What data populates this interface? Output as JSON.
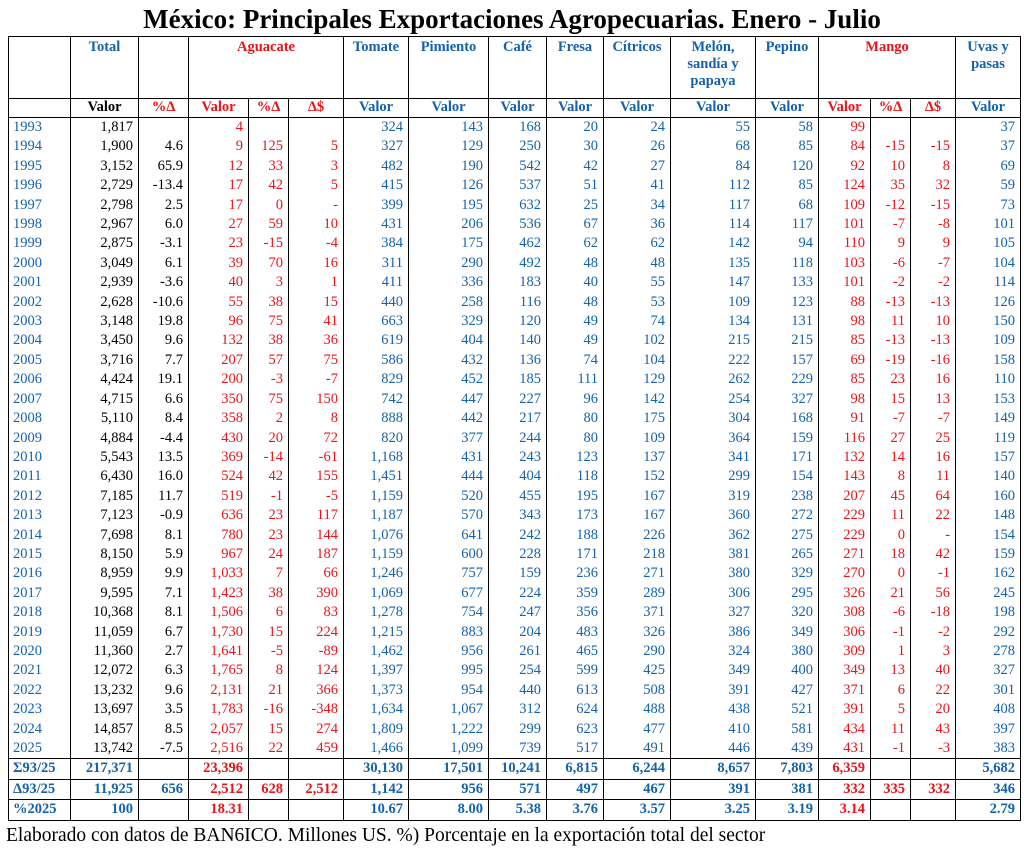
{
  "title": "México: Principales Exportaciones Agropecuarias. Enero - Julio",
  "header": {
    "groups": [
      null,
      "Total",
      null,
      "Aguacate",
      "Tomate",
      "Pimiento",
      "Café",
      "Fresa",
      "Cítricos",
      "Melón, sandía y papaya",
      "Pepino",
      "Mango",
      "Uvas y pasas"
    ],
    "subheaders": [
      null,
      "Valor",
      "%Δ",
      "Valor",
      "%Δ",
      "Δ$",
      "Valor",
      "Valor",
      "Valor",
      "Valor",
      "Valor",
      "Valor",
      "Valor",
      "Valor",
      "%Δ",
      "Δ$",
      "Valor"
    ]
  },
  "table": {
    "rows": [
      [
        "1993",
        "1,817",
        null,
        "4",
        null,
        null,
        "324",
        "143",
        "168",
        "20",
        "24",
        "55",
        "58",
        "99",
        null,
        null,
        "37"
      ],
      [
        "1994",
        "1,900",
        "4.6",
        "9",
        "125",
        "5",
        "327",
        "129",
        "250",
        "30",
        "26",
        "68",
        "85",
        "84",
        "-15",
        "-15",
        "37"
      ],
      [
        "1995",
        "3,152",
        "65.9",
        "12",
        "33",
        "3",
        "482",
        "190",
        "542",
        "42",
        "27",
        "84",
        "120",
        "92",
        "10",
        "8",
        "69"
      ],
      [
        "1996",
        "2,729",
        "-13.4",
        "17",
        "42",
        "5",
        "415",
        "126",
        "537",
        "51",
        "41",
        "112",
        "85",
        "124",
        "35",
        "32",
        "59"
      ],
      [
        "1997",
        "2,798",
        "2.5",
        "17",
        "0",
        "-",
        "399",
        "195",
        "632",
        "25",
        "34",
        "117",
        "68",
        "109",
        "-12",
        "-15",
        "73"
      ],
      [
        "1998",
        "2,967",
        "6.0",
        "27",
        "59",
        "10",
        "431",
        "206",
        "536",
        "67",
        "36",
        "114",
        "117",
        "101",
        "-7",
        "-8",
        "101"
      ],
      [
        "1999",
        "2,875",
        "-3.1",
        "23",
        "-15",
        "-4",
        "384",
        "175",
        "462",
        "62",
        "62",
        "142",
        "94",
        "110",
        "9",
        "9",
        "105"
      ],
      [
        "2000",
        "3,049",
        "6.1",
        "39",
        "70",
        "16",
        "311",
        "290",
        "492",
        "48",
        "48",
        "135",
        "118",
        "103",
        "-6",
        "-7",
        "104"
      ],
      [
        "2001",
        "2,939",
        "-3.6",
        "40",
        "3",
        "1",
        "411",
        "336",
        "183",
        "40",
        "55",
        "147",
        "133",
        "101",
        "-2",
        "-2",
        "114"
      ],
      [
        "2002",
        "2,628",
        "-10.6",
        "55",
        "38",
        "15",
        "440",
        "258",
        "116",
        "48",
        "53",
        "109",
        "123",
        "88",
        "-13",
        "-13",
        "126"
      ],
      [
        "2003",
        "3,148",
        "19.8",
        "96",
        "75",
        "41",
        "663",
        "329",
        "120",
        "49",
        "74",
        "134",
        "131",
        "98",
        "11",
        "10",
        "150"
      ],
      [
        "2004",
        "3,450",
        "9.6",
        "132",
        "38",
        "36",
        "619",
        "404",
        "140",
        "49",
        "102",
        "215",
        "215",
        "85",
        "-13",
        "-13",
        "109"
      ],
      [
        "2005",
        "3,716",
        "7.7",
        "207",
        "57",
        "75",
        "586",
        "432",
        "136",
        "74",
        "104",
        "222",
        "157",
        "69",
        "-19",
        "-16",
        "158"
      ],
      [
        "2006",
        "4,424",
        "19.1",
        "200",
        "-3",
        "-7",
        "829",
        "452",
        "185",
        "111",
        "129",
        "262",
        "229",
        "85",
        "23",
        "16",
        "110"
      ],
      [
        "2007",
        "4,715",
        "6.6",
        "350",
        "75",
        "150",
        "742",
        "447",
        "227",
        "96",
        "142",
        "254",
        "327",
        "98",
        "15",
        "13",
        "153"
      ],
      [
        "2008",
        "5,110",
        "8.4",
        "358",
        "2",
        "8",
        "888",
        "442",
        "217",
        "80",
        "175",
        "304",
        "168",
        "91",
        "-7",
        "-7",
        "149"
      ],
      [
        "2009",
        "4,884",
        "-4.4",
        "430",
        "20",
        "72",
        "820",
        "377",
        "244",
        "80",
        "109",
        "364",
        "159",
        "116",
        "27",
        "25",
        "119"
      ],
      [
        "2010",
        "5,543",
        "13.5",
        "369",
        "-14",
        "-61",
        "1,168",
        "431",
        "243",
        "123",
        "137",
        "341",
        "171",
        "132",
        "14",
        "16",
        "157"
      ],
      [
        "2011",
        "6,430",
        "16.0",
        "524",
        "42",
        "155",
        "1,451",
        "444",
        "404",
        "118",
        "152",
        "299",
        "154",
        "143",
        "8",
        "11",
        "140"
      ],
      [
        "2012",
        "7,185",
        "11.7",
        "519",
        "-1",
        "-5",
        "1,159",
        "520",
        "455",
        "195",
        "167",
        "319",
        "238",
        "207",
        "45",
        "64",
        "160"
      ],
      [
        "2013",
        "7,123",
        "-0.9",
        "636",
        "23",
        "117",
        "1,187",
        "570",
        "343",
        "173",
        "167",
        "360",
        "272",
        "229",
        "11",
        "22",
        "148"
      ],
      [
        "2014",
        "7,698",
        "8.1",
        "780",
        "23",
        "144",
        "1,076",
        "641",
        "242",
        "188",
        "226",
        "362",
        "275",
        "229",
        "0",
        "-",
        "154"
      ],
      [
        "2015",
        "8,150",
        "5.9",
        "967",
        "24",
        "187",
        "1,159",
        "600",
        "228",
        "171",
        "218",
        "381",
        "265",
        "271",
        "18",
        "42",
        "159"
      ],
      [
        "2016",
        "8,959",
        "9.9",
        "1,033",
        "7",
        "66",
        "1,246",
        "757",
        "159",
        "236",
        "271",
        "380",
        "329",
        "270",
        "0",
        "-1",
        "162"
      ],
      [
        "2017",
        "9,595",
        "7.1",
        "1,423",
        "38",
        "390",
        "1,069",
        "677",
        "224",
        "359",
        "289",
        "306",
        "295",
        "326",
        "21",
        "56",
        "245"
      ],
      [
        "2018",
        "10,368",
        "8.1",
        "1,506",
        "6",
        "83",
        "1,278",
        "754",
        "247",
        "356",
        "371",
        "327",
        "320",
        "308",
        "-6",
        "-18",
        "198"
      ],
      [
        "2019",
        "11,059",
        "6.7",
        "1,730",
        "15",
        "224",
        "1,215",
        "883",
        "204",
        "483",
        "326",
        "386",
        "349",
        "306",
        "-1",
        "-2",
        "292"
      ],
      [
        "2020",
        "11,360",
        "2.7",
        "1,641",
        "-5",
        "-89",
        "1,462",
        "956",
        "261",
        "465",
        "290",
        "324",
        "380",
        "309",
        "1",
        "3",
        "278"
      ],
      [
        "2021",
        "12,072",
        "6.3",
        "1,765",
        "8",
        "124",
        "1,397",
        "995",
        "254",
        "599",
        "425",
        "349",
        "400",
        "349",
        "13",
        "40",
        "327"
      ],
      [
        "2022",
        "13,232",
        "9.6",
        "2,131",
        "21",
        "366",
        "1,373",
        "954",
        "440",
        "613",
        "508",
        "391",
        "427",
        "371",
        "6",
        "22",
        "301"
      ],
      [
        "2023",
        "13,697",
        "3.5",
        "1,783",
        "-16",
        "-348",
        "1,634",
        "1,067",
        "312",
        "624",
        "488",
        "438",
        "521",
        "391",
        "5",
        "20",
        "408"
      ],
      [
        "2024",
        "14,857",
        "8.5",
        "2,057",
        "15",
        "274",
        "1,809",
        "1,222",
        "299",
        "623",
        "477",
        "410",
        "581",
        "434",
        "11",
        "43",
        "397"
      ],
      [
        "2025",
        "13,742",
        "-7.5",
        "2,516",
        "22",
        "459",
        "1,466",
        "1,099",
        "739",
        "517",
        "491",
        "446",
        "439",
        "431",
        "-1",
        "-3",
        "383"
      ]
    ],
    "footer_rows": [
      [
        "Σ93/25",
        "217,371",
        null,
        "23,396",
        null,
        null,
        "30,130",
        "17,501",
        "10,241",
        "6,815",
        "6,244",
        "8,657",
        "7,803",
        "6,359",
        null,
        null,
        "5,682"
      ],
      [
        "Δ93/25",
        "11,925",
        "656",
        "2,512",
        "628",
        "2,512",
        "1,142",
        "956",
        "571",
        "497",
        "467",
        "391",
        "381",
        "332",
        "335",
        "332",
        "346"
      ],
      [
        "%2025",
        "100",
        null,
        "18.31",
        null,
        null,
        "10.67",
        "8.00",
        "5.38",
        "3.76",
        "3.57",
        "3.25",
        "3.19",
        "3.14",
        null,
        null,
        "2.79"
      ]
    ]
  },
  "footnote": "Elaborado con datos de BAN6ICO. Millones US. %) Porcentaje en la exportación total del sector"
}
